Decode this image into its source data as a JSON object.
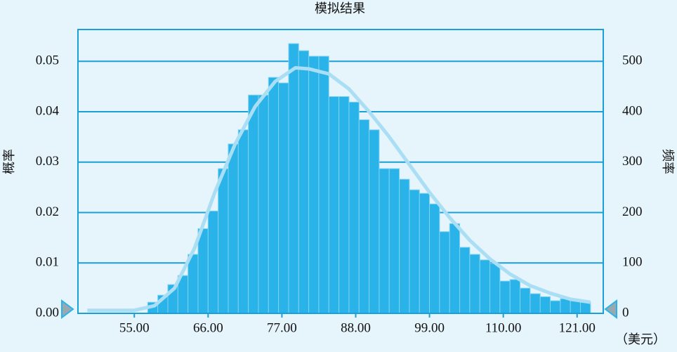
{
  "chart_data": {
    "type": "histogram",
    "title": "模拟结果",
    "ylabel": "概率",
    "y2label": "频率",
    "xunit": "（美元）",
    "bins": [
      57,
      58.5,
      60,
      61.5,
      63,
      64.5,
      66,
      67.5,
      69,
      70.5,
      72,
      73.5,
      75,
      76.5,
      78,
      79.5,
      81,
      82.5,
      84,
      85.5,
      87,
      88.5,
      90,
      91.5,
      93,
      94.5,
      96,
      97.5,
      99,
      100.5,
      102,
      103.5,
      105,
      106.5,
      108,
      109.5,
      111,
      112.5,
      114,
      115.5,
      117,
      118.5,
      120,
      121.5,
      123
    ],
    "values": [
      22,
      36,
      57,
      75,
      117,
      168,
      203,
      287,
      336,
      364,
      433,
      433,
      468,
      457,
      535,
      521,
      510,
      510,
      430,
      430,
      419,
      384,
      364,
      287,
      287,
      266,
      245,
      238,
      217,
      162,
      178,
      131,
      117,
      106,
      99,
      64,
      67,
      50,
      39,
      33,
      25,
      29,
      28,
      22
    ],
    "color": "#29b3e8",
    "axis": "y2",
    "curve": {
      "x": [
        48,
        55,
        58,
        61,
        64,
        67,
        70,
        73,
        76,
        79,
        81,
        84,
        87,
        90,
        93,
        96,
        99,
        102,
        105,
        108,
        111,
        114,
        117,
        120,
        123
      ],
      "values": [
        6,
        6,
        15,
        50,
        130,
        240,
        335,
        410,
        460,
        487,
        485,
        475,
        445,
        400,
        350,
        295,
        240,
        190,
        145,
        108,
        78,
        55,
        40,
        28,
        22
      ],
      "color": "#a9def5"
    },
    "xlim": [
      46.6,
      124.9
    ],
    "xticks": [
      {
        "value": 55,
        "label": "55.00"
      },
      {
        "value": 66,
        "label": "66.00"
      },
      {
        "value": 77,
        "label": "77.00"
      },
      {
        "value": 88,
        "label": "88.00"
      },
      {
        "value": 99,
        "label": "99.00"
      },
      {
        "value": 110,
        "label": "110.00"
      },
      {
        "value": 121,
        "label": "121.00"
      }
    ],
    "ylim": [
      0,
      0.0563
    ],
    "yticks": [
      {
        "value": 0,
        "label": "0.00"
      },
      0.01,
      0.02,
      0.03,
      0.04,
      0.05
    ],
    "y2lim": [
      0,
      563
    ],
    "y2ticks": [
      0,
      100,
      200,
      300,
      400,
      500
    ],
    "grid": true
  }
}
